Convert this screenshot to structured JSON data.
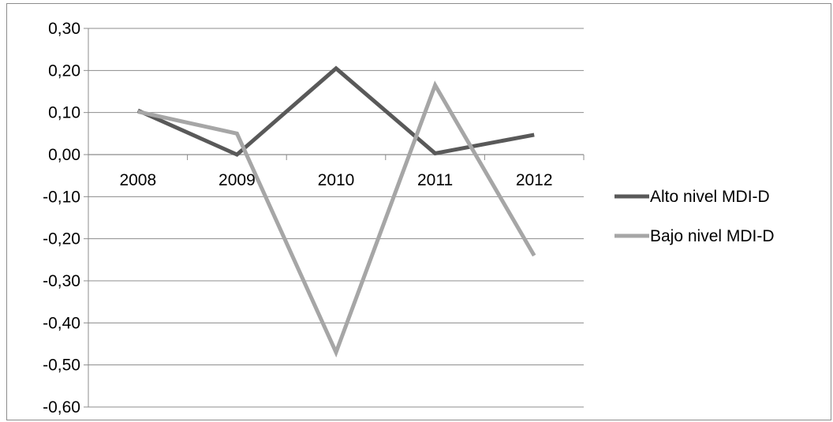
{
  "chart_data": {
    "type": "line",
    "title": "",
    "xlabel": "",
    "ylabel": "",
    "categories": [
      "2008",
      "2009",
      "2010",
      "2011",
      "2012"
    ],
    "ylim": [
      -0.6,
      0.3
    ],
    "yticks": [
      0.3,
      0.2,
      0.1,
      0.0,
      -0.1,
      -0.2,
      -0.3,
      -0.4,
      -0.5,
      -0.6
    ],
    "ytick_labels": [
      "0,30",
      "0,20",
      "0,10",
      "0,00",
      "-0,10",
      "-0,20",
      "-0,30",
      "-0,40",
      "-0,50",
      "-0,60"
    ],
    "grid": true,
    "legend_position": "right",
    "series": [
      {
        "name": "Alto nivel MDI-D",
        "color": "#595959",
        "values": [
          0.105,
          0.0,
          0.205,
          0.003,
          0.047
        ]
      },
      {
        "name": "Bajo nivel MDI-D",
        "color": "#a6a6a6",
        "values": [
          0.102,
          0.05,
          -0.47,
          0.165,
          -0.24
        ]
      }
    ]
  }
}
